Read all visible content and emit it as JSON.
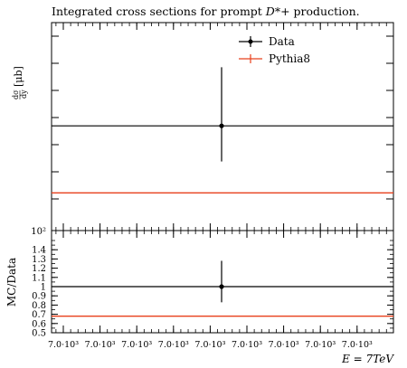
{
  "chart_data": {
    "type": "scatter",
    "title": "Integrated cross sections for prompt D*+ production.",
    "ylabel_top": "dσ/dy [μb]",
    "ylabel_bottom": "MC/Data",
    "xlabel": "E = 7TeV",
    "x_tick_labels": [
      "7.0·10³",
      "7.0·10³",
      "7.0·10³",
      "7.0·10³",
      "7.0·10³",
      "7.0·10³",
      "7.0·10³",
      "7.0·10³",
      "7.0·10³"
    ],
    "series": [
      {
        "name": "Data",
        "color": "#000000",
        "x": [
          7000
        ],
        "y": [
          1.0
        ],
        "err_down": [
          0.17
        ],
        "err_up": [
          0.28
        ]
      },
      {
        "name": "Pythia8",
        "color": "#e8401c",
        "x": [
          7000
        ],
        "y": [
          0.68
        ]
      }
    ],
    "ratio_panel": {
      "ylim": [
        0.5,
        1.5
      ],
      "y_tick_labels": [
        "0.5",
        "0.6",
        "0.7",
        "0.8",
        "0.9",
        "1",
        "1.1",
        "1.2",
        "1.3",
        "1.4"
      ],
      "top_tick_label": "10²",
      "data_ratio": {
        "y": 1.0,
        "err_down": 0.17,
        "err_up": 0.28
      },
      "mc_ratio": 0.68
    },
    "legend": {
      "placement": "top-right",
      "entries": [
        "Data",
        "Pythia8"
      ]
    }
  }
}
